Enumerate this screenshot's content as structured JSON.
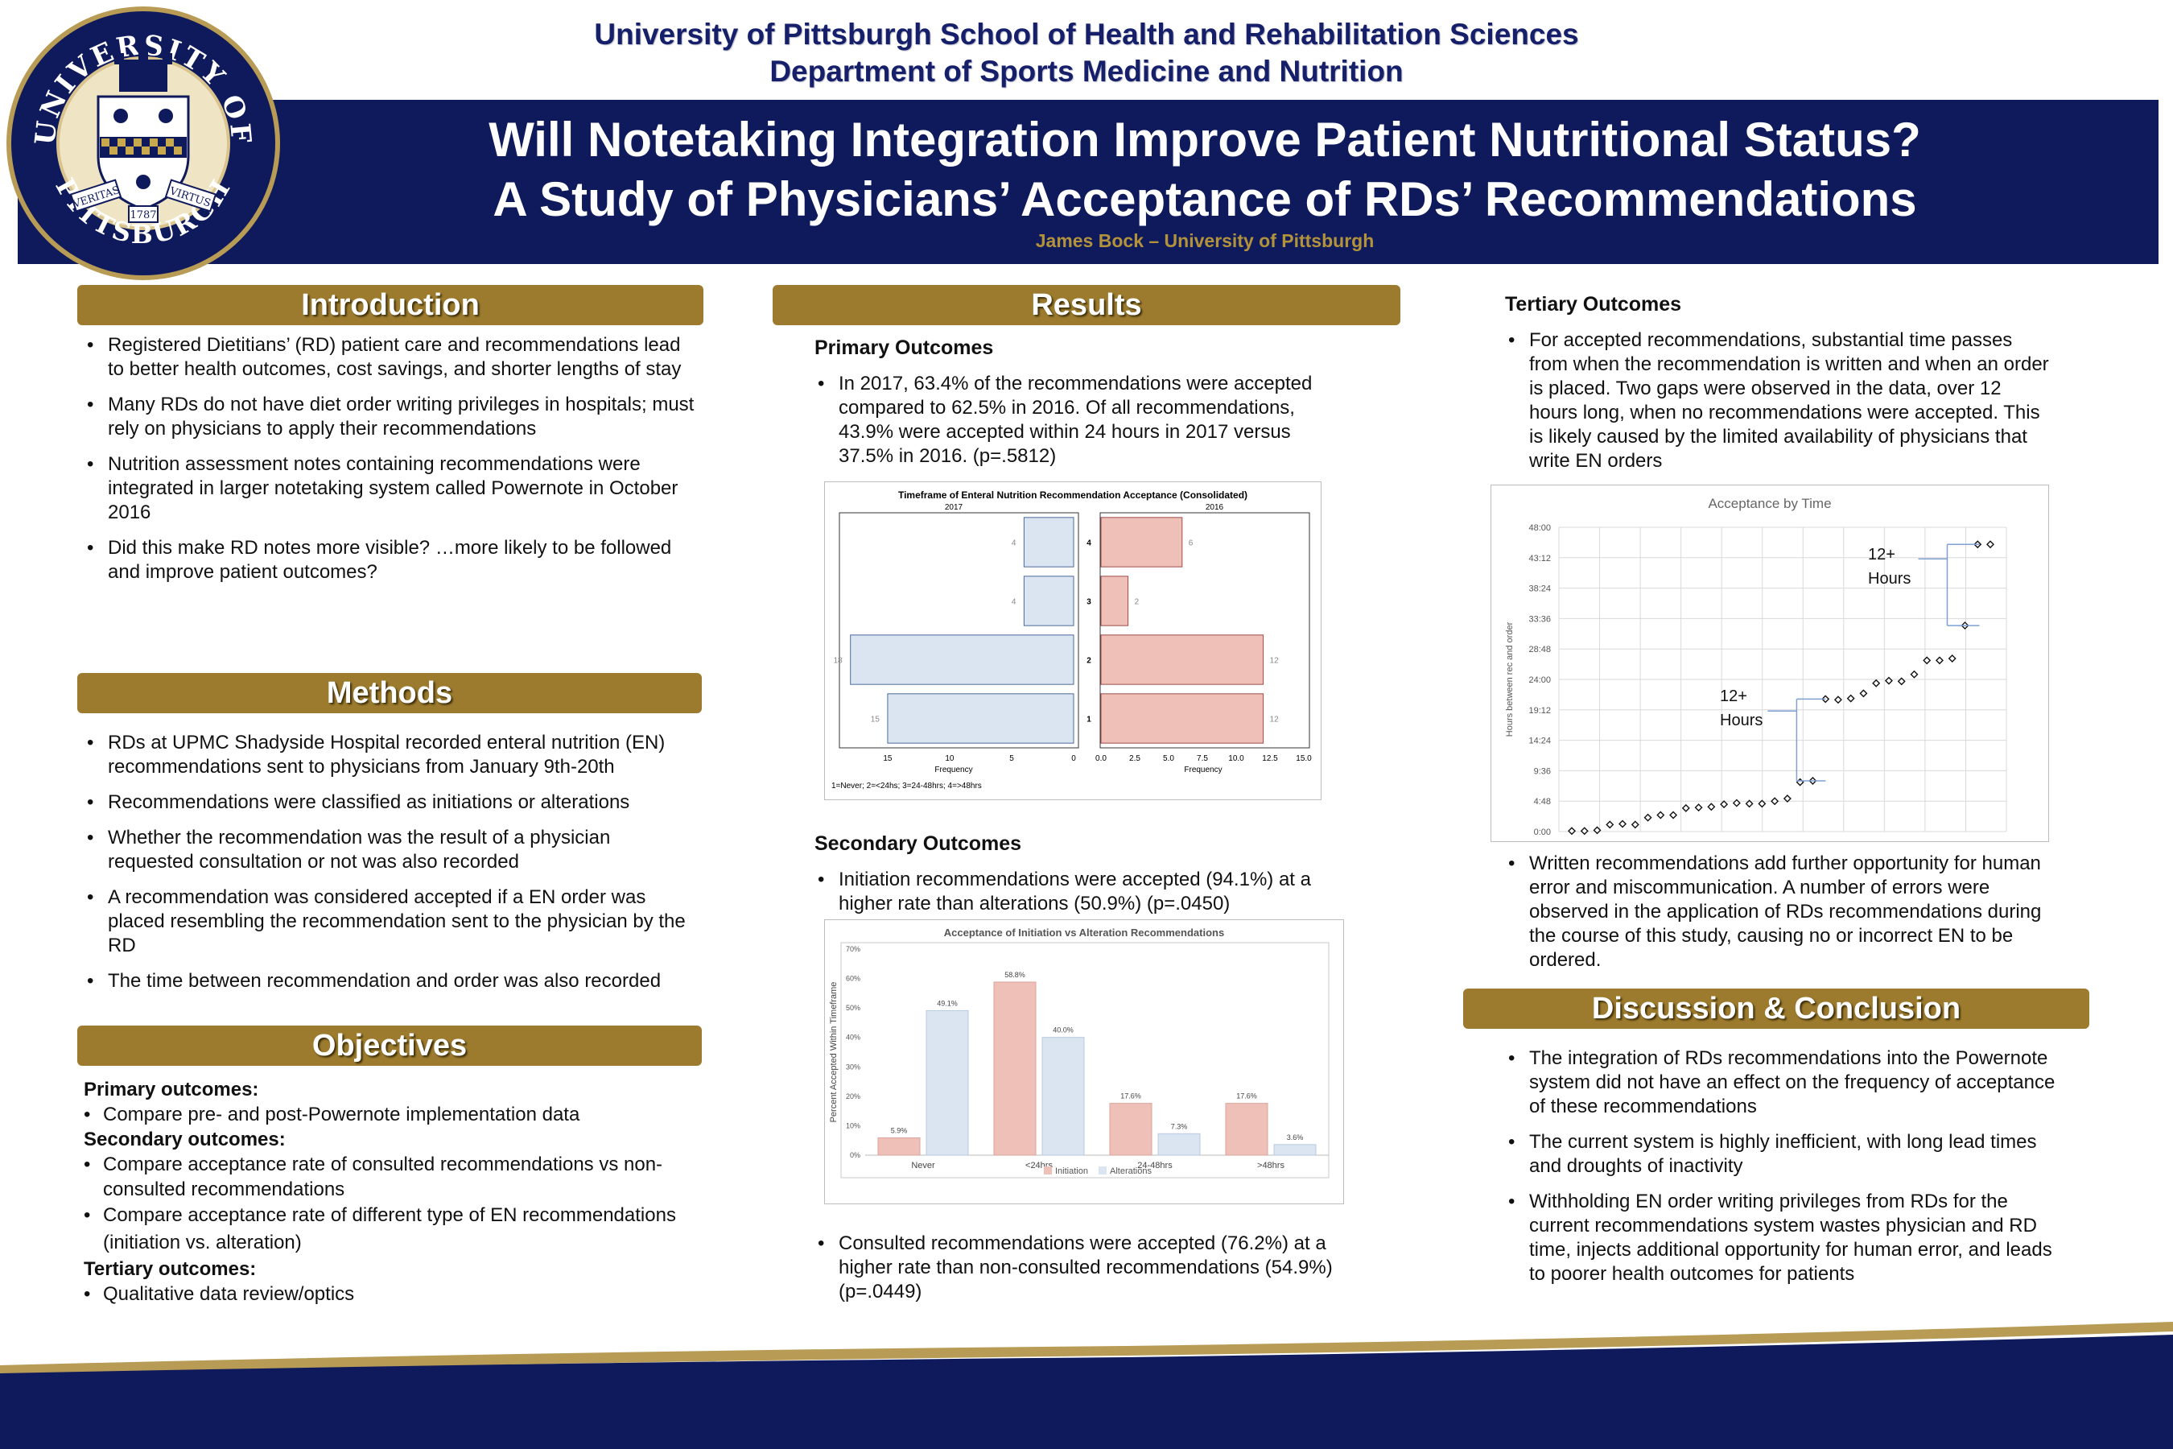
{
  "header": {
    "institution_line1": "University of Pittsburgh School of  Health and Rehabilitation Sciences",
    "institution_line2": "Department of Sports Medicine and Nutrition",
    "title_line1": "Will Notetaking Integration Improve Patient Nutritional Status?",
    "title_line2": "A Study of Physicians’ Acceptance of RDs’ Recommendations",
    "author": "James Bock – University of Pittsburgh",
    "seal_text_top": "UNIVERSITY OF",
    "seal_text_bottom": "PITTSBURGH",
    "seal_text_left": "VERITAS",
    "seal_text_right": "VIRTUS",
    "seal_year": "1787"
  },
  "colors": {
    "navy": "#0f1a5c",
    "gold": "#9c7b2e",
    "pink_bar": "#efc0b8",
    "blue_bar": "#dbe5f1"
  },
  "introduction": {
    "heading": "Introduction",
    "bullets": [
      "Registered Dietitians’ (RD) patient care and recommendations lead to better health outcomes, cost savings, and shorter lengths of stay",
      "Many RDs do not have diet order writing privileges in hospitals; must rely on physicians to apply their recommendations",
      "Nutrition assessment notes containing recommendations were integrated in larger notetaking system called Powernote in October 2016",
      "Did this make RD notes more visible? …more likely to be followed and improve patient outcomes?"
    ]
  },
  "methods": {
    "heading": "Methods",
    "bullets": [
      "RDs at UPMC Shadyside Hospital recorded enteral nutrition (EN) recommendations sent to physicians from January 9th-20th",
      "Recommendations were classified as initiations or alterations",
      "Whether the recommendation was the result of a physician requested consultation or not was also recorded",
      "A recommendation was considered accepted if a EN order was placed resembling the recommendation sent to the physician by the RD",
      "The time between recommendation and order was also recorded"
    ]
  },
  "objectives": {
    "heading": "Objectives",
    "primary_heading": "Primary outcomes:",
    "primary_items": [
      "Compare pre- and post-Powernote implementation data"
    ],
    "secondary_heading": "Secondary outcomes:",
    "secondary_items": [
      "Compare acceptance rate of consulted recommendations vs non-consulted recommendations",
      "Compare acceptance rate of different type of EN recommendations (initiation vs. alteration)"
    ],
    "tertiary_heading": "Tertiary outcomes:",
    "tertiary_items": [
      "Qualitative data review/optics"
    ]
  },
  "results": {
    "heading": "Results",
    "primary_heading": "Primary Outcomes",
    "primary_bullet": "In 2017, 63.4% of the recommendations were accepted compared to 62.5% in 2016. Of all recommendations, 43.9% were accepted within 24 hours in 2017 versus 37.5% in 2016. (p=.5812)",
    "secondary_heading": "Secondary Outcomes",
    "secondary_bullet": "Initiation recommendations were accepted (94.1%) at a higher rate than alterations (50.9%) (p=.0450)",
    "consulted_bullet": "Consulted recommendations were accepted (76.2%) at a higher rate than non-consulted recommendations (54.9%) (p=.0449)"
  },
  "tertiary": {
    "heading": "Tertiary Outcomes",
    "bullet1": "For accepted recommendations, substantial time passes from when the recommendation is written and when an order is placed. Two gaps were observed in the data, over 12 hours long, when no recommendations were accepted. This is likely caused by the limited availability of physicians that write EN orders",
    "bullet2": "Written recommendations add further opportunity for human error and miscommunication. A number of errors were observed in the application of RDs recommendations during the course of this study, causing no or incorrect EN to be ordered."
  },
  "discussion": {
    "heading": "Discussion & Conclusion",
    "bullets": [
      "The integration of RDs recommendations into the Powernote system did not have an effect on the frequency of acceptance of these recommendations",
      "The current system is highly inefficient, with long lead times and droughts of inactivity",
      "Withholding EN order writing privileges from RDs for the current recommendations system wastes physician and RD time, injects additional opportunity for human error, and leads to poorer health outcomes for patients"
    ]
  },
  "chart_data": [
    {
      "type": "bar",
      "orientation": "horizontal",
      "title": "Timeframe of Enteral Nutrition Recommendation Acceptance (Consolidated)",
      "categories": [
        "1",
        "2",
        "3",
        "4"
      ],
      "series": [
        {
          "name": "2017",
          "values": [
            15,
            18,
            4,
            4
          ]
        },
        {
          "name": "2016",
          "values": [
            12,
            12,
            2,
            6
          ]
        }
      ],
      "xlabel": "Frequency",
      "left_ticks": [
        "15",
        "10",
        "5",
        "0"
      ],
      "right_ticks": [
        "0.0",
        "2.5",
        "5.0",
        "7.5",
        "10.0",
        "12.5",
        "15.0"
      ],
      "left_xlim": [
        0,
        18.5
      ],
      "right_xlim": [
        0,
        15
      ],
      "footnote": "1=Never; 2=<24hs; 3=24-48hrs; 4=>48hrs"
    },
    {
      "type": "bar",
      "title": "Acceptance of Initiation vs Alteration Recommendations",
      "categories": [
        "Never",
        "<24hrs",
        "24-48hrs",
        ">48hrs"
      ],
      "series": [
        {
          "name": "Initiation",
          "values": [
            5.9,
            58.8,
            17.6,
            17.6
          ],
          "labels": [
            "5.9%",
            "58.8%",
            "17.6%",
            "17.6%"
          ]
        },
        {
          "name": "Alterations",
          "values": [
            49.1,
            40.0,
            7.3,
            3.6
          ],
          "labels": [
            "49.1%",
            "40.0%",
            "7.3%",
            "3.6%"
          ]
        }
      ],
      "ylabel": "Percent Accepted Within Timeframe",
      "yticks": [
        "0%",
        "10%",
        "20%",
        "30%",
        "40%",
        "50%",
        "60%",
        "70%"
      ],
      "ylim": [
        0,
        70
      ],
      "legend": "bottom"
    },
    {
      "type": "scatter",
      "title": "Acceptance by Time",
      "ylabel": "Hours between rec and order",
      "yticks": [
        "0:00",
        "4:48",
        "9:36",
        "14:24",
        "19:12",
        "24:00",
        "28:48",
        "33:36",
        "38:24",
        "43:12",
        "48:00"
      ],
      "ylim_hours": [
        0,
        48
      ],
      "points_hours": [
        0.1,
        0.1,
        0.2,
        1.1,
        1.2,
        1.1,
        2.2,
        2.6,
        2.6,
        3.7,
        3.8,
        3.9,
        4.3,
        4.5,
        4.4,
        4.4,
        4.8,
        5.2,
        7.8,
        8.0,
        20.9,
        20.8,
        21.0,
        21.8,
        23.4,
        23.8,
        23.7,
        24.8,
        27.0,
        27.0,
        27.3,
        32.5,
        45.3,
        45.3
      ],
      "annotations": [
        {
          "text_line1": "12+",
          "text_line2": "Hours"
        },
        {
          "text_line1": "12+",
          "text_line2": "Hours"
        }
      ]
    }
  ]
}
